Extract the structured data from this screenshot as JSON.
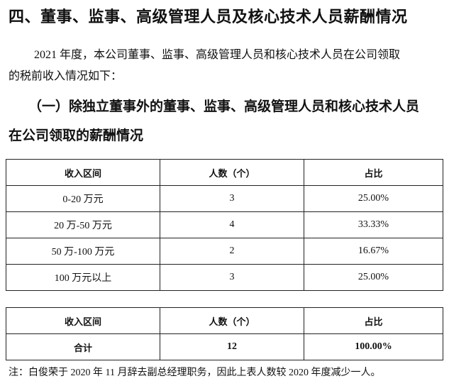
{
  "title": "四、董事、监事、高级管理人员及核心技术人员薪酬情况",
  "paragraph": [
    "2021 年度，本公司董事、监事、高级管理人员和核心技术人员在公司领取",
    "的税前收入情况如下："
  ],
  "subheading": [
    "（一）除独立董事外的董事、监事、高级管理人员和核心技术人员",
    "在公司领取的薪酬情况"
  ],
  "table1": {
    "headers": [
      "收入区间",
      "人数（个）",
      "占比"
    ],
    "rows": [
      [
        "0-20 万元",
        "3",
        "25.00%"
      ],
      [
        "20 万-50 万元",
        "4",
        "33.33%"
      ],
      [
        "50 万-100 万元",
        "2",
        "16.67%"
      ],
      [
        "100 万元以上",
        "3",
        "25.00%"
      ]
    ]
  },
  "table2": {
    "headers": [
      "收入区间",
      "人数（个）",
      "占比"
    ],
    "rows": [
      [
        "合计",
        "12",
        "100.00%"
      ]
    ]
  },
  "note": "注：白俊荣于 2020 年 11 月辞去副总经理职务，因此上表人数较 2020 年度减少一人。"
}
